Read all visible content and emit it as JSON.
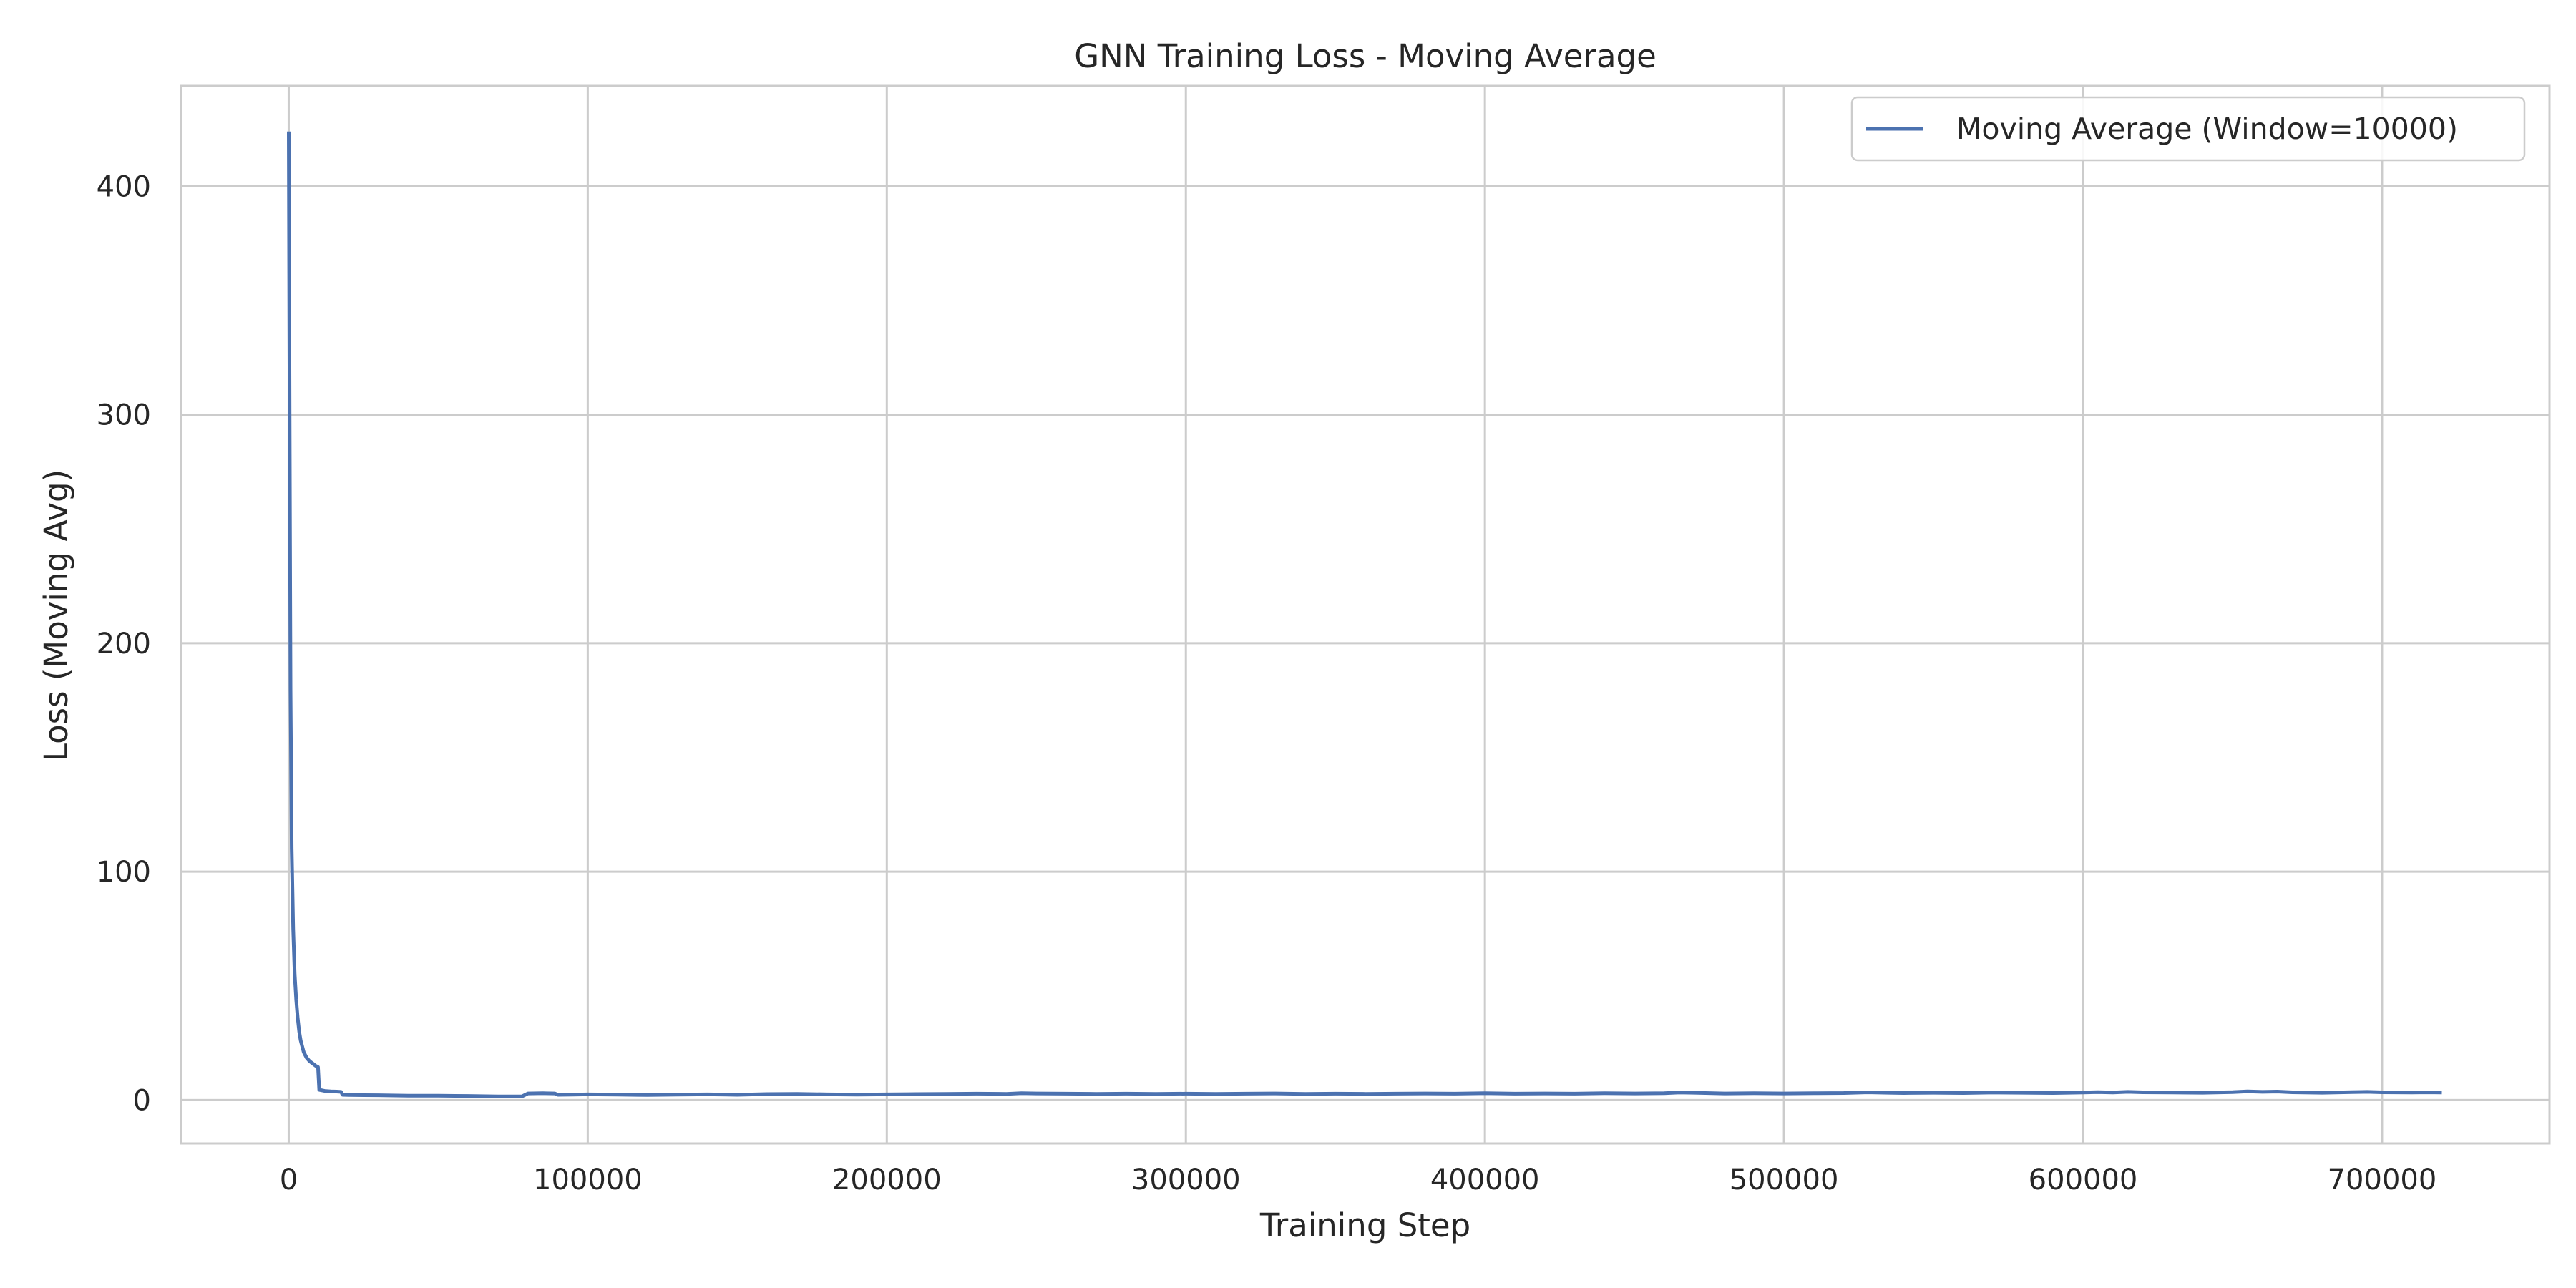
{
  "chart_data": {
    "type": "line",
    "title": "GNN Training Loss - Moving Average",
    "xlabel": "Training Step",
    "ylabel": "Loss (Moving Avg)",
    "xlim": [
      -36000,
      756000
    ],
    "ylim": [
      -19,
      444
    ],
    "xticks": [
      0,
      100000,
      200000,
      300000,
      400000,
      500000,
      600000,
      700000
    ],
    "xtick_labels": [
      "0",
      "100000",
      "200000",
      "300000",
      "400000",
      "500000",
      "600000",
      "700000"
    ],
    "yticks": [
      0,
      100,
      200,
      300,
      400
    ],
    "ytick_labels": [
      "0",
      "100",
      "200",
      "300",
      "400"
    ],
    "grid": true,
    "legend_position": "top-right",
    "series": [
      {
        "name": "Moving Average (Window=10000)",
        "color": "#4c72b0",
        "x": [
          0,
          300,
          600,
          1000,
          1500,
          2000,
          2500,
          3000,
          3500,
          4000,
          5000,
          6000,
          7000,
          8000,
          9000,
          9800,
          10200,
          12000,
          14000,
          16000,
          17500,
          18000,
          20000,
          30000,
          40000,
          50000,
          60000,
          70000,
          78000,
          80000,
          85000,
          89000,
          90000,
          95000,
          100000,
          110000,
          120000,
          130000,
          140000,
          150000,
          160000,
          170000,
          180000,
          190000,
          200000,
          210000,
          220000,
          230000,
          240000,
          245000,
          250000,
          260000,
          270000,
          280000,
          290000,
          300000,
          310000,
          320000,
          330000,
          340000,
          350000,
          360000,
          370000,
          380000,
          390000,
          400000,
          410000,
          420000,
          430000,
          440000,
          450000,
          460000,
          465000,
          470000,
          480000,
          490000,
          500000,
          510000,
          520000,
          528000,
          535000,
          540000,
          550000,
          560000,
          570000,
          580000,
          590000,
          600000,
          605000,
          610000,
          615000,
          620000,
          630000,
          640000,
          650000,
          655000,
          660000,
          665000,
          670000,
          680000,
          690000,
          695000,
          700000,
          710000,
          715000,
          720000
        ],
        "y": [
          424,
          300,
          180,
          110,
          75,
          55,
          44,
          36,
          30,
          26,
          21,
          18.5,
          17,
          16,
          15,
          14.5,
          4.5,
          4,
          3.8,
          3.7,
          3.6,
          2.3,
          2.2,
          2.1,
          1.9,
          1.9,
          1.8,
          1.6,
          1.6,
          2.9,
          3.0,
          2.9,
          2.3,
          2.4,
          2.5,
          2.4,
          2.2,
          2.4,
          2.5,
          2.3,
          2.6,
          2.7,
          2.5,
          2.4,
          2.5,
          2.6,
          2.7,
          2.8,
          2.7,
          3.0,
          2.9,
          2.8,
          2.7,
          2.8,
          2.7,
          2.8,
          2.7,
          2.8,
          2.9,
          2.7,
          2.8,
          2.7,
          2.8,
          2.9,
          2.8,
          3.0,
          2.8,
          2.9,
          2.8,
          3.0,
          2.9,
          3.0,
          3.3,
          3.2,
          2.9,
          3.0,
          2.9,
          3.0,
          3.1,
          3.4,
          3.2,
          3.1,
          3.2,
          3.1,
          3.3,
          3.2,
          3.1,
          3.3,
          3.5,
          3.3,
          3.6,
          3.4,
          3.3,
          3.2,
          3.5,
          3.8,
          3.6,
          3.7,
          3.4,
          3.2,
          3.5,
          3.6,
          3.4,
          3.3,
          3.4,
          3.3
        ]
      }
    ]
  }
}
